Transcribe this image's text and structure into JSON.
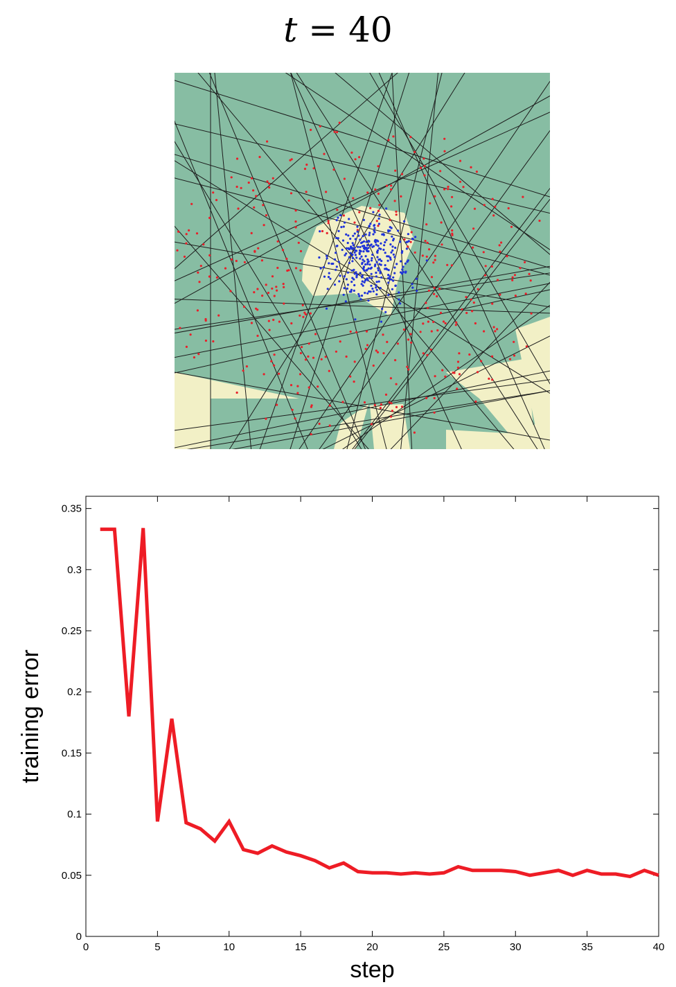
{
  "title": {
    "var": "t",
    "rest": " = 40"
  },
  "panel": {
    "colors": {
      "green_region": "#87bda3",
      "yellow_region": "#f2f0c6",
      "line": "#1c1c1c",
      "red_points": "#e8202a",
      "blue_points": "#1f33d9"
    }
  },
  "chart_data": {
    "type": "line",
    "x": [
      1,
      2,
      3,
      4,
      5,
      6,
      7,
      8,
      9,
      10,
      11,
      12,
      13,
      14,
      15,
      16,
      17,
      18,
      19,
      20,
      21,
      22,
      23,
      24,
      25,
      26,
      27,
      28,
      29,
      30,
      31,
      32,
      33,
      34,
      35,
      36,
      37,
      38,
      39,
      40
    ],
    "series": [
      {
        "values": [
          0.333,
          0.333,
          0.18,
          0.334,
          0.094,
          0.178,
          0.093,
          0.088,
          0.078,
          0.094,
          0.071,
          0.068,
          0.074,
          0.069,
          0.066,
          0.062,
          0.056,
          0.06,
          0.053,
          0.052,
          0.052,
          0.051,
          0.052,
          0.051,
          0.052,
          0.057,
          0.054,
          0.054,
          0.054,
          0.053,
          0.05,
          0.052,
          0.054,
          0.05,
          0.054,
          0.051,
          0.051,
          0.049,
          0.054,
          0.05
        ],
        "color": "#ee1c25"
      }
    ],
    "title": "",
    "xlabel": "step",
    "ylabel": "training error",
    "xlim": [
      0,
      40
    ],
    "ylim": [
      0,
      0.36
    ],
    "xticks": [
      "0",
      "5",
      "10",
      "15",
      "20",
      "25",
      "30",
      "35",
      "40"
    ],
    "yticks": [
      "0",
      "0.05",
      "0.1",
      "0.15",
      "0.2",
      "0.25",
      "0.3",
      "0.35"
    ],
    "grid": false,
    "legend": "none"
  }
}
